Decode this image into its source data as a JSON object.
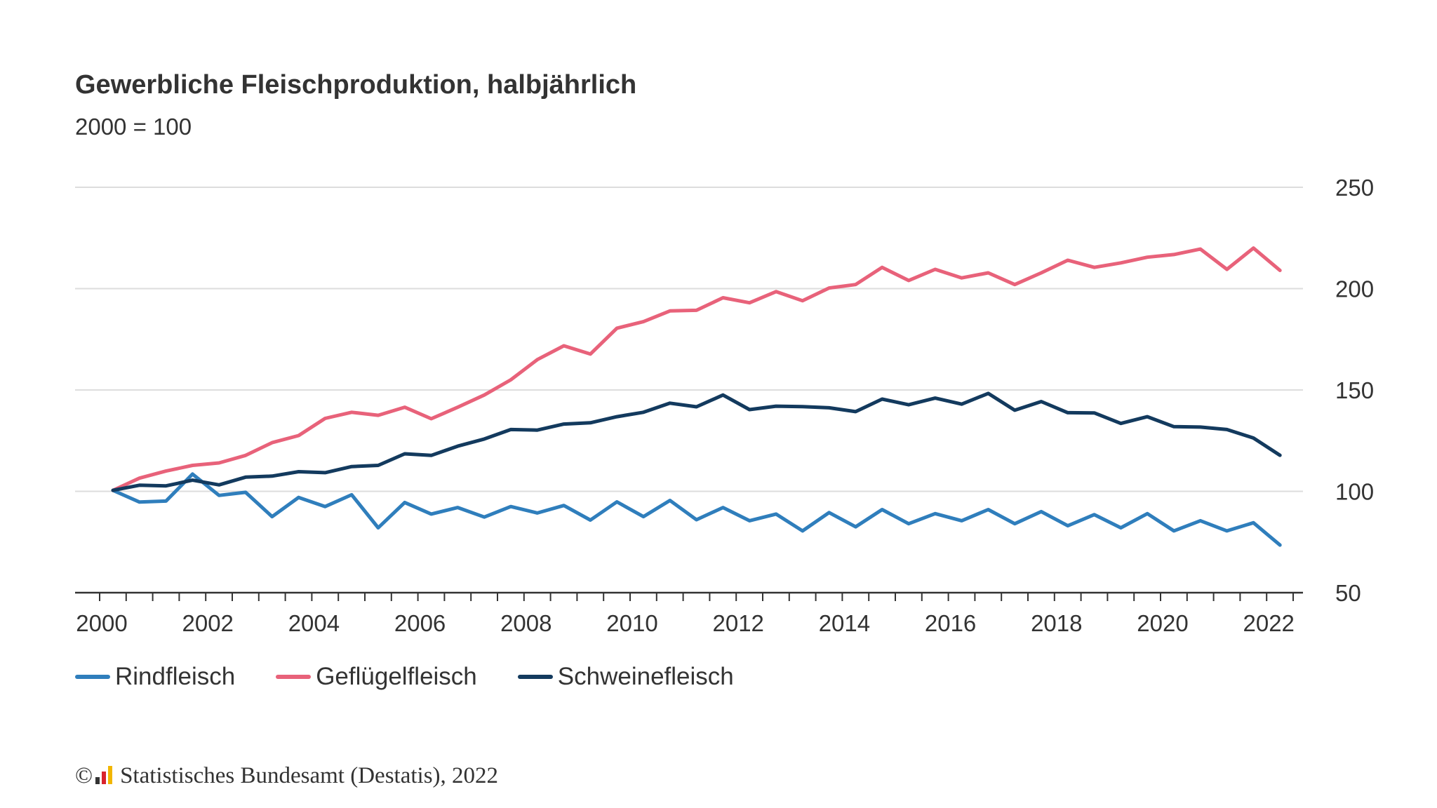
{
  "header": {
    "title": "Gewerbliche Fleischproduktion, halbjährlich",
    "subtitle": "2000 = 100"
  },
  "footer": {
    "copyright_symbol": "©",
    "source": "Statistisches Bundesamt (Destatis), 2022",
    "logo_icon": "destatis-logo-icon"
  },
  "chart_data": {
    "type": "line",
    "title": "Gewerbliche Fleischproduktion, halbjährlich",
    "subtitle": "2000 = 100",
    "x": [
      "2000-H1",
      "2000-H2",
      "2001-H1",
      "2001-H2",
      "2002-H1",
      "2002-H2",
      "2003-H1",
      "2003-H2",
      "2004-H1",
      "2004-H2",
      "2005-H1",
      "2005-H2",
      "2006-H1",
      "2006-H2",
      "2007-H1",
      "2007-H2",
      "2008-H1",
      "2008-H2",
      "2009-H1",
      "2009-H2",
      "2010-H1",
      "2010-H2",
      "2011-H1",
      "2011-H2",
      "2012-H1",
      "2012-H2",
      "2013-H1",
      "2013-H2",
      "2014-H1",
      "2014-H2",
      "2015-H1",
      "2015-H2",
      "2016-H1",
      "2016-H2",
      "2017-H1",
      "2017-H2",
      "2018-H1",
      "2018-H2",
      "2019-H1",
      "2019-H2",
      "2020-H1",
      "2020-H2",
      "2021-H1",
      "2021-H2",
      "2022-H1"
    ],
    "x_tick_labels": [
      "2000",
      "2002",
      "2004",
      "2006",
      "2008",
      "2010",
      "2012",
      "2014",
      "2016",
      "2018",
      "2020",
      "2022"
    ],
    "y_tick_labels": [
      "250",
      "200",
      "150",
      "100",
      "50"
    ],
    "ylim": [
      50,
      250
    ],
    "y_ticks": [
      50,
      100,
      150,
      200,
      250
    ],
    "y_axis_side": "right",
    "grid": true,
    "legend_position": "bottom-left",
    "series": [
      {
        "name": "Rindfleisch",
        "color": "#2f7ebc",
        "values": [
          100.5,
          94.7,
          95.2,
          108.5,
          98.0,
          99.5,
          87.5,
          97.0,
          92.5,
          98.3,
          82.0,
          94.5,
          88.8,
          92.0,
          87.3,
          92.5,
          89.3,
          93.0,
          85.8,
          94.8,
          87.5,
          95.5,
          86.0,
          92.0,
          85.5,
          88.8,
          80.5,
          89.5,
          82.5,
          91.0,
          84.0,
          89.0,
          85.5,
          91.0,
          84.0,
          90.0,
          83.0,
          88.5,
          82.0,
          89.0,
          80.5,
          85.5,
          80.5,
          84.5,
          73.5
        ]
      },
      {
        "name": "Geflügelfleisch",
        "color": "#e8627a",
        "values": [
          100.5,
          106.5,
          110.0,
          112.8,
          114.0,
          117.7,
          124.0,
          127.5,
          136.0,
          139.0,
          137.5,
          141.5,
          135.8,
          141.5,
          147.5,
          155.0,
          165.0,
          171.8,
          167.7,
          180.5,
          183.7,
          189.0,
          189.3,
          195.5,
          193.0,
          198.5,
          194.0,
          200.3,
          202.0,
          210.5,
          204.0,
          209.5,
          205.3,
          207.8,
          202.0,
          207.8,
          214.0,
          210.5,
          212.7,
          215.5,
          216.8,
          219.5,
          209.5,
          220.0,
          209.0
        ]
      },
      {
        "name": "Schweinefleisch",
        "color": "#133a5e",
        "values": [
          100.5,
          103.0,
          102.7,
          105.5,
          103.2,
          107.0,
          107.5,
          109.7,
          109.2,
          112.2,
          112.8,
          118.5,
          117.7,
          122.3,
          125.8,
          130.5,
          130.2,
          133.2,
          133.8,
          136.8,
          139.0,
          143.5,
          141.7,
          147.5,
          140.3,
          142.0,
          141.8,
          141.2,
          139.3,
          145.5,
          142.7,
          146.0,
          143.0,
          148.3,
          140.0,
          144.3,
          138.8,
          138.7,
          133.5,
          136.8,
          131.9,
          131.7,
          130.5,
          126.3,
          117.8
        ]
      }
    ]
  }
}
